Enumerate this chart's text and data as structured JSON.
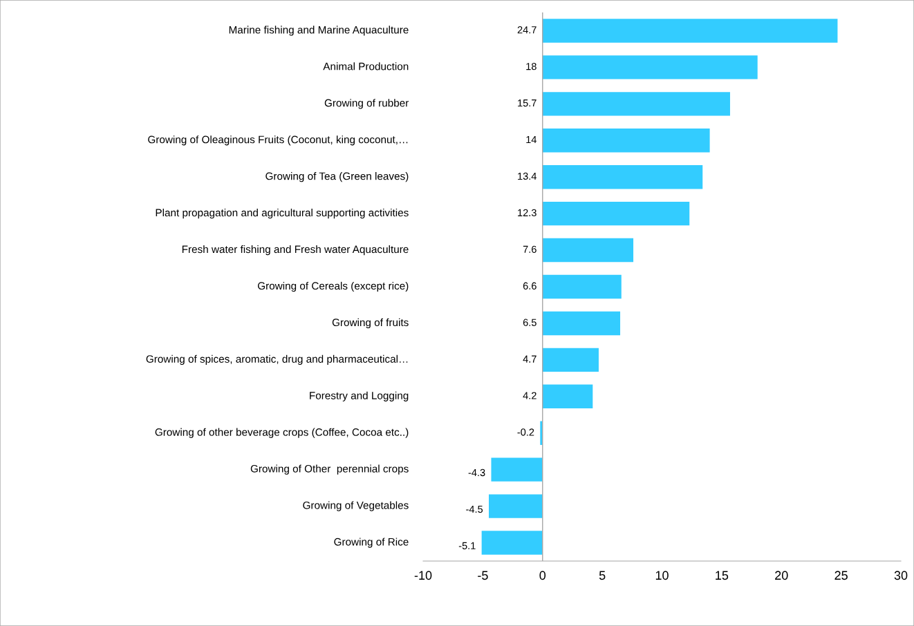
{
  "chart_data": {
    "type": "bar",
    "orientation": "horizontal",
    "categories": [
      "Marine fishing and Marine Aquaculture",
      "Animal Production",
      "Growing of rubber",
      "Growing of Oleaginous Fruits (Coconut, king coconut,…",
      "Growing of Tea (Green leaves)",
      "Plant propagation and agricultural supporting activities",
      "Fresh water fishing and Fresh water Aquaculture",
      "Growing of Cereals (except rice)",
      "Growing of fruits",
      "Growing of spices, aromatic, drug and pharmaceutical…",
      "Forestry and Logging",
      "Growing of other beverage crops (Coffee, Cocoa etc..)",
      "Growing of Other  perennial crops",
      "Growing of Vegetables",
      "Growing of Rice"
    ],
    "values": [
      24.7,
      18,
      15.7,
      14,
      13.4,
      12.3,
      7.6,
      6.6,
      6.5,
      4.7,
      4.2,
      -0.2,
      -4.3,
      -4.5,
      -5.1
    ],
    "color": "#33ccff",
    "data_labels": true,
    "ref_lines": [
      {
        "axis": "x",
        "value": 0,
        "color": "#a6a6a6"
      }
    ],
    "grid": false,
    "legend": false,
    "xlim": [
      -10,
      30
    ],
    "xticks": [
      -10,
      -5,
      0,
      5,
      10,
      15,
      20,
      25,
      30
    ]
  }
}
